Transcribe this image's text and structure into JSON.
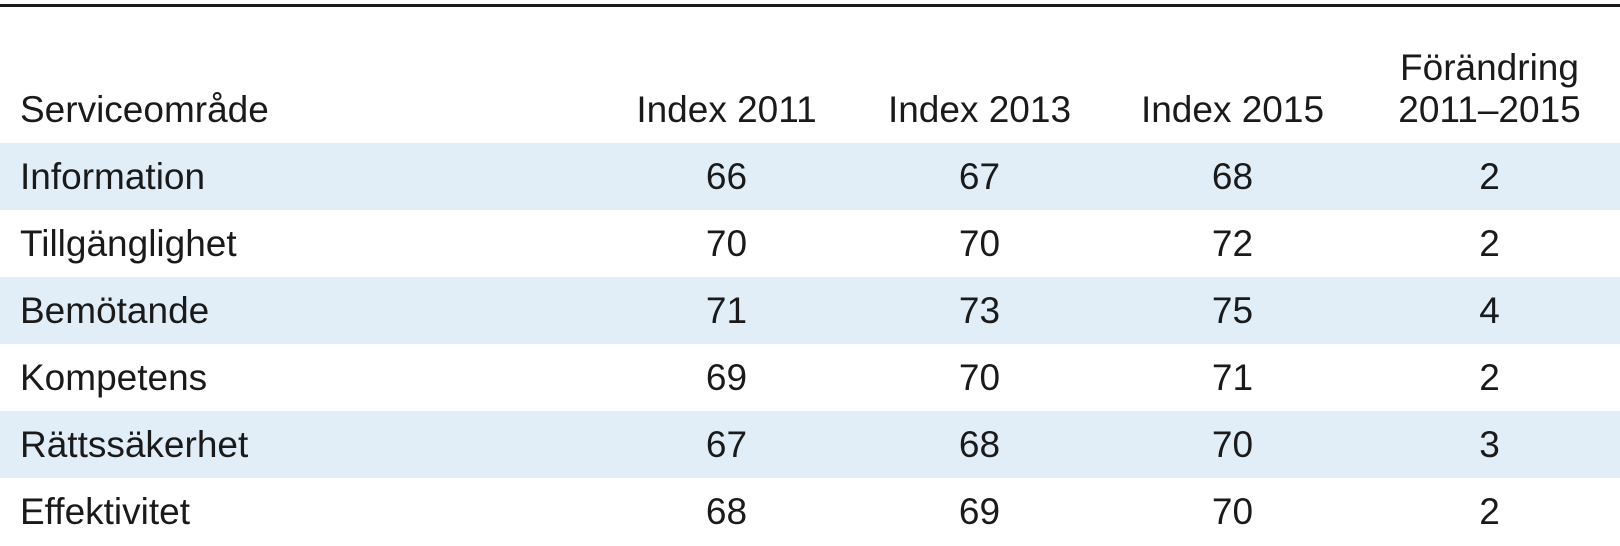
{
  "table": {
    "headers": [
      "Serviceområde",
      "Index 2011",
      "Index 2013",
      "Index 2015",
      "Förändring\n2011–2015"
    ],
    "header_change_line1": "Förändring",
    "header_change_line2": "2011–2015",
    "rows": [
      [
        "Information",
        "66",
        "67",
        "68",
        "2"
      ],
      [
        "Tillgänglighet",
        "70",
        "70",
        "72",
        "2"
      ],
      [
        "Bemötande",
        "71",
        "73",
        "75",
        "4"
      ],
      [
        "Kompetens",
        "69",
        "70",
        "71",
        "2"
      ],
      [
        "Rättssäkerhet",
        "67",
        "68",
        "70",
        "3"
      ],
      [
        "Effektivitet",
        "68",
        "69",
        "70",
        "2"
      ]
    ]
  },
  "colors": {
    "text": "#1a1a1a",
    "stripe": "#e1eef8",
    "rule": "#1a1a1a"
  }
}
